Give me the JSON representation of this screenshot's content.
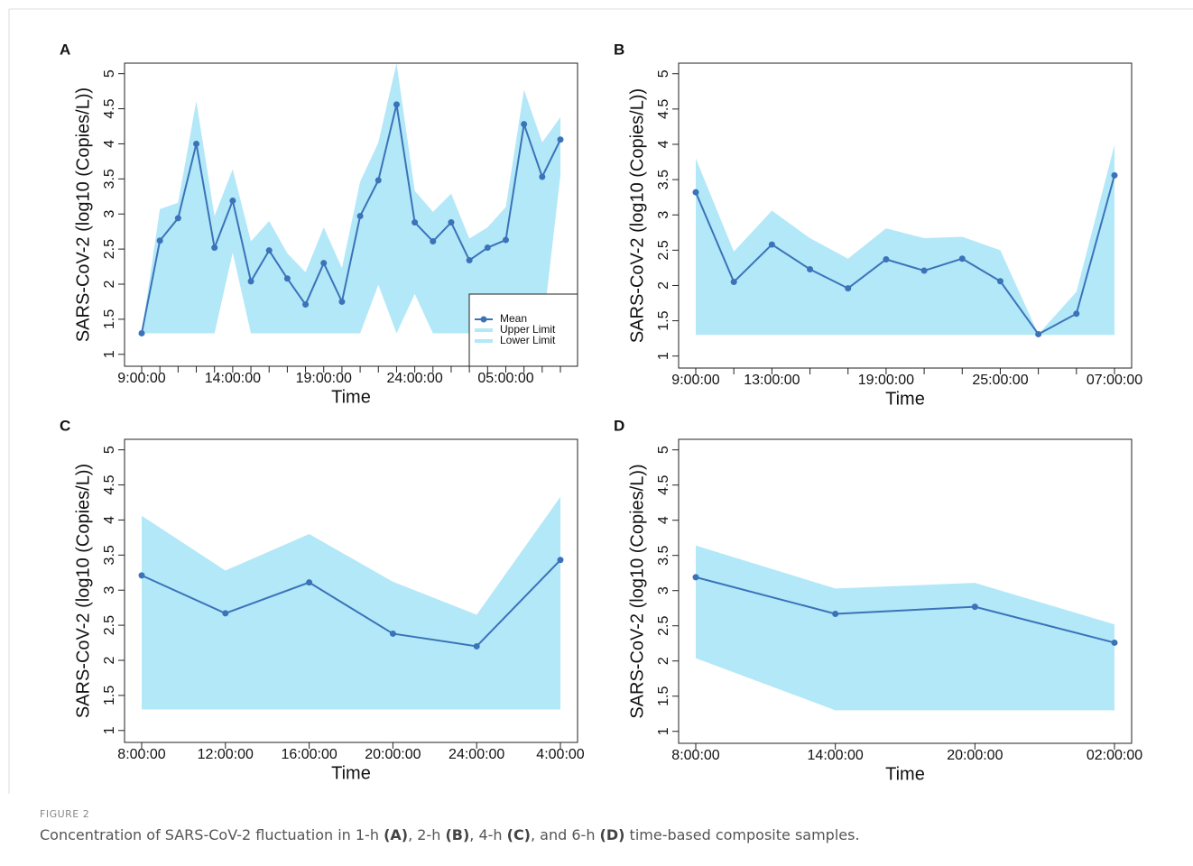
{
  "chart_data": [
    {
      "type": "line",
      "label": "A",
      "xlabel": "Time",
      "ylabel": "SARS-CoV-2 (log10 (Copies/L))",
      "categories": [
        "9:00:00",
        null,
        null,
        null,
        null,
        "14:00:00",
        null,
        null,
        null,
        null,
        "19:00:00",
        null,
        null,
        null,
        null,
        "24:00:00",
        null,
        null,
        null,
        null,
        "05:00:00",
        null,
        null,
        null
      ],
      "series": [
        {
          "name": "Mean",
          "color": "#3b73b9",
          "values": [
            1.3,
            2.62,
            2.94,
            4.0,
            2.52,
            3.19,
            2.04,
            2.48,
            2.08,
            1.71,
            2.3,
            1.75,
            2.97,
            3.48,
            4.56,
            2.88,
            2.61,
            2.88,
            2.34,
            2.52,
            2.63,
            4.28,
            3.53,
            4.06
          ]
        },
        {
          "name": "Upper Limit",
          "color": "#b3e8f8",
          "values": [
            1.3,
            3.07,
            3.16,
            4.61,
            2.97,
            3.64,
            2.61,
            2.9,
            2.44,
            2.17,
            2.81,
            2.23,
            3.46,
            4.02,
            5.15,
            3.33,
            3.03,
            3.29,
            2.65,
            2.81,
            3.1,
            4.77,
            4.02,
            4.38
          ]
        },
        {
          "name": "Lower Limit",
          "color": "#b3e8f8",
          "values": [
            1.3,
            1.3,
            1.3,
            1.3,
            1.3,
            2.45,
            1.3,
            1.3,
            1.3,
            1.3,
            1.3,
            1.3,
            1.3,
            1.99,
            1.3,
            1.86,
            1.3,
            1.3,
            1.3,
            1.3,
            1.3,
            1.3,
            1.3,
            3.55
          ]
        }
      ],
      "ylim": [
        0.83,
        5.15
      ],
      "yticks": [
        1,
        1.5,
        2,
        2.5,
        3,
        3.5,
        4,
        4.5,
        5
      ],
      "legend": "bottom-right"
    },
    {
      "type": "line",
      "label": "B",
      "xlabel": "Time",
      "ylabel": "SARS-CoV-2 (log10 (Copies/L))",
      "categories": [
        "9:00:00",
        null,
        "13:00:00",
        null,
        null,
        "19:00:00",
        null,
        null,
        "25:00:00",
        null,
        null,
        "07:00:00"
      ],
      "series": [
        {
          "color": "#3b73b9",
          "values": [
            3.32,
            2.05,
            2.58,
            2.23,
            1.96,
            2.37,
            2.21,
            2.38,
            2.06,
            1.31,
            1.6,
            3.56
          ]
        },
        {
          "color": "#b3e8f8",
          "values": [
            3.8,
            2.48,
            3.06,
            2.67,
            2.38,
            2.81,
            2.67,
            2.69,
            2.5,
            1.31,
            1.91,
            3.99
          ]
        },
        {
          "color": "#b3e8f8",
          "values": [
            1.3,
            1.3,
            1.3,
            1.3,
            1.3,
            1.3,
            1.3,
            1.3,
            1.3,
            1.3,
            1.3,
            1.3
          ]
        }
      ],
      "ylim": [
        0.83,
        5.15
      ],
      "yticks": [
        1,
        1.5,
        2,
        2.5,
        3,
        3.5,
        4,
        4.5,
        5
      ]
    },
    {
      "type": "line",
      "label": "C",
      "xlabel": "Time",
      "ylabel": "SARS-CoV-2 (log10 (Copies/L))",
      "categories": [
        "8:00:00",
        "12:00:00",
        "16:00:00",
        "20:00:00",
        "24:00:00",
        "4:00:00"
      ],
      "series": [
        {
          "color": "#3b73b9",
          "values": [
            3.21,
            2.67,
            3.11,
            2.38,
            2.2,
            3.43
          ]
        },
        {
          "color": "#b3e8f8",
          "values": [
            4.06,
            3.28,
            3.8,
            3.12,
            2.65,
            4.33
          ]
        },
        {
          "color": "#b3e8f8",
          "values": [
            1.3,
            1.3,
            1.3,
            1.3,
            1.3,
            1.3
          ]
        }
      ],
      "ylim": [
        0.83,
        5.15
      ],
      "yticks": [
        1,
        1.5,
        2,
        2.5,
        3,
        3.5,
        4,
        4.5,
        5
      ]
    },
    {
      "type": "line",
      "label": "D",
      "xlabel": "Time",
      "ylabel": "SARS-CoV-2 (log10 (Copies/L))",
      "categories": [
        "8:00:00",
        "14:00:00",
        "20:00:00",
        "02:00:00"
      ],
      "series": [
        {
          "color": "#3b73b9",
          "values": [
            3.19,
            2.67,
            2.77,
            2.26
          ]
        },
        {
          "color": "#b3e8f8",
          "values": [
            3.64,
            3.03,
            3.11,
            2.52
          ]
        },
        {
          "color": "#b3e8f8",
          "values": [
            2.04,
            1.3,
            1.3,
            1.3
          ]
        }
      ],
      "ylim": [
        0.83,
        5.15
      ],
      "yticks": [
        1,
        1.5,
        2,
        2.5,
        3,
        3.5,
        4,
        4.5,
        5
      ]
    }
  ],
  "figure": {
    "label": "FIGURE 2",
    "caption": [
      "Concentration of SARS-CoV-2 fluctuation in 1-h ",
      "(A)",
      ", 2-h ",
      "(B)",
      ", 4-h ",
      "(C)",
      ", and 6-h ",
      "(D)",
      " time-based composite samples."
    ]
  }
}
